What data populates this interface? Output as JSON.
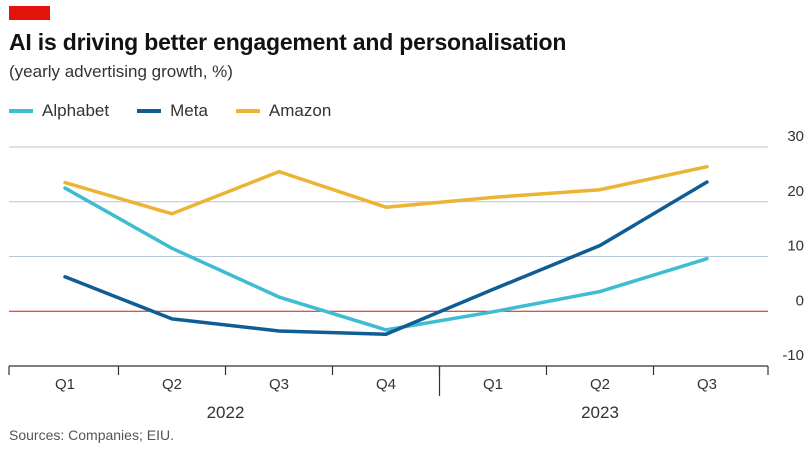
{
  "header": {
    "title": "AI is driving better engagement and personalisation",
    "subtitle": "(yearly advertising growth, %)"
  },
  "footer": {
    "source": "Sources: Companies; EIU."
  },
  "colors": {
    "accent_tag": "#e3120b",
    "zero_line": "#e3120b",
    "grid": "#b7c6d9"
  },
  "chart_data": {
    "type": "line",
    "title": "AI is driving better engagement and personalisation",
    "subtitle": "(yearly advertising growth, %)",
    "ylabel": "",
    "xlabel": "",
    "categories": [
      "Q1",
      "Q2",
      "Q3",
      "Q4",
      "Q1",
      "Q2",
      "Q3"
    ],
    "year_groups": [
      {
        "label": "2022",
        "start": 0,
        "end": 3
      },
      {
        "label": "2023",
        "start": 4,
        "end": 6
      }
    ],
    "ylim": [
      -10,
      30
    ],
    "yticks": [
      30,
      20,
      10,
      0,
      -10
    ],
    "ytick_labels": [
      "30",
      "20",
      "10",
      "0",
      "-10"
    ],
    "grid": true,
    "legend_position": "top-left",
    "series": [
      {
        "name": "Alphabet",
        "color": "#3ebcd2",
        "values": [
          22.5,
          11.5,
          2.6,
          -3.4,
          -0.1,
          3.6,
          9.6
        ]
      },
      {
        "name": "Meta",
        "color": "#0f5d94",
        "values": [
          6.3,
          -1.4,
          -3.6,
          -4.2,
          4,
          12,
          23.6
        ]
      },
      {
        "name": "Amazon",
        "color": "#ebb434",
        "values": [
          23.5,
          17.8,
          25.5,
          19,
          20.8,
          22.2,
          26.4
        ]
      }
    ]
  }
}
